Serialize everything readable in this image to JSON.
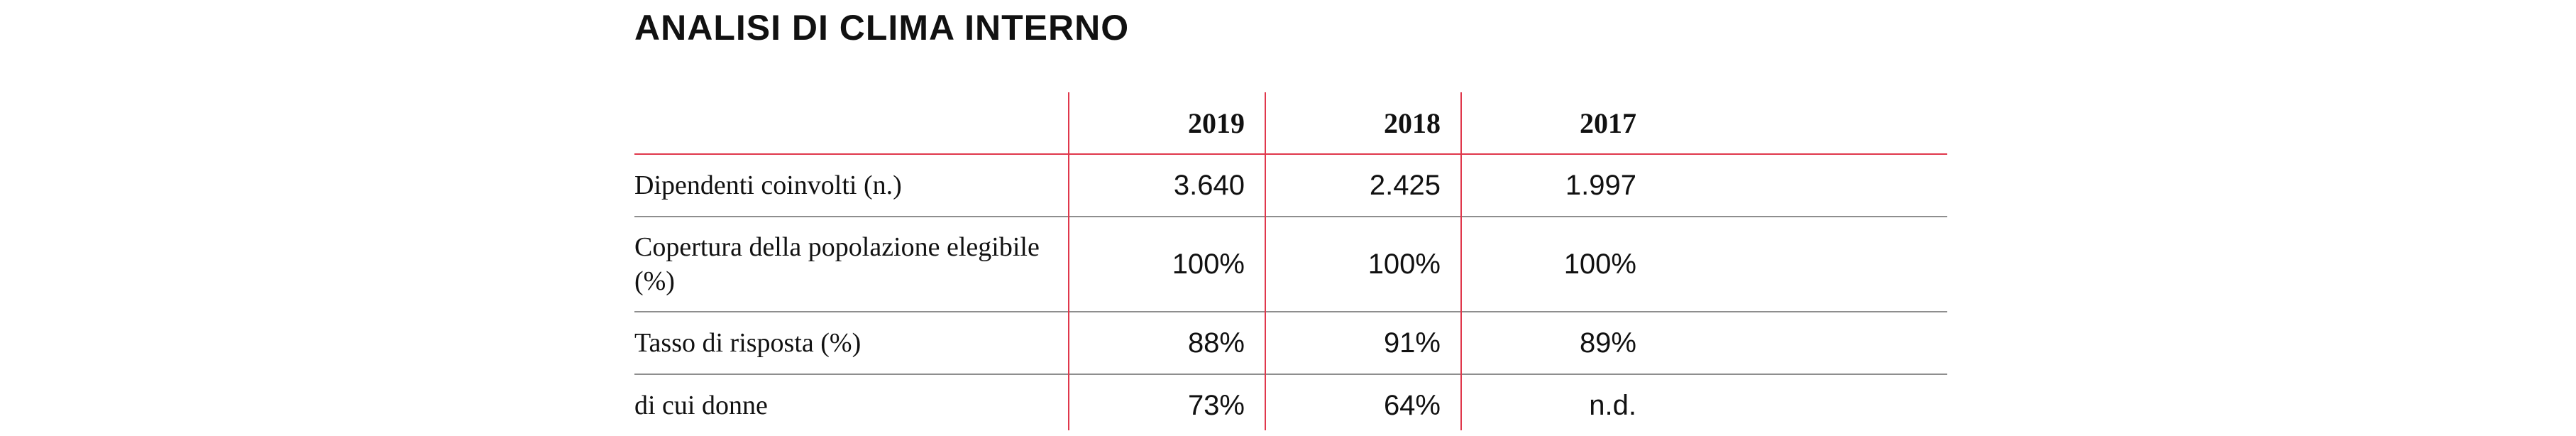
{
  "title": "ANALISI DI CLIMA INTERNO",
  "columns": [
    "2019",
    "2018",
    "2017"
  ],
  "rows": [
    {
      "label": "Dipendenti coinvolti (n.)",
      "values": [
        "3.640",
        "2.425",
        "1.997"
      ]
    },
    {
      "label": "Copertura della popolazione elegibile (%)",
      "values": [
        "100%",
        "100%",
        "100%"
      ]
    },
    {
      "label": "Tasso di risposta (%)",
      "values": [
        "88%",
        "91%",
        "89%"
      ]
    },
    {
      "label": "di cui donne",
      "values": [
        "73%",
        "64%",
        "n.d."
      ]
    }
  ],
  "colors": {
    "accent_red": "#e0374b",
    "row_divider": "#8e8e8e",
    "text": "#111111"
  }
}
